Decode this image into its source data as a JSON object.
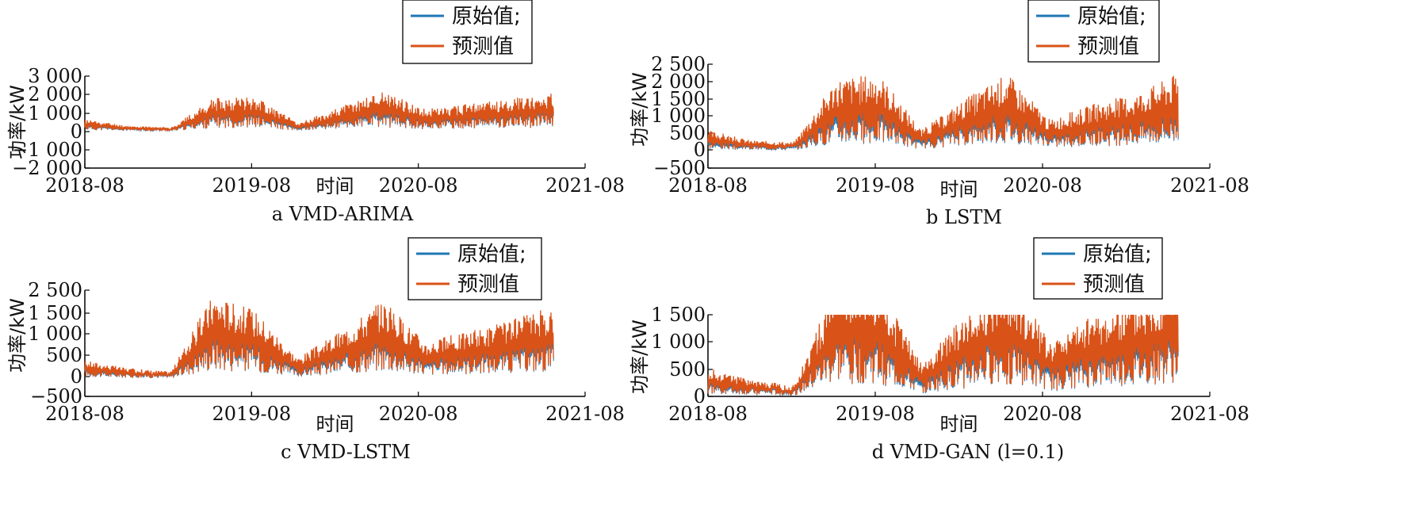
{
  "colors": {
    "original": "#1f77b4",
    "predicted": "#d95319",
    "axis": "#000000"
  },
  "chart_data": [
    {
      "type": "line",
      "caption": "a VMD-ARIMA",
      "xlabel": "时间",
      "ylabel": "功率/kW",
      "xticks": [
        "2018-08",
        "2019-08",
        "2020-08",
        "2021-08"
      ],
      "yticks": [
        "3 000",
        "2 000",
        "1 000",
        "0",
        "−1 000",
        "−2 000"
      ],
      "ylim": [
        -2000,
        3000
      ],
      "legend": [
        "原始值;",
        "预测值"
      ],
      "legend_position": "top-right",
      "series": [
        {
          "name": "原始值;",
          "x": [
            "2018-08",
            "2018-11",
            "2019-02",
            "2019-05",
            "2019-08",
            "2019-11",
            "2020-02",
            "2020-05",
            "2020-08",
            "2020-11",
            "2021-02",
            "2021-05"
          ],
          "values": [
            400,
            150,
            50,
            1100,
            1200,
            200,
            800,
            1300,
            700,
            900,
            1100,
            1300
          ]
        },
        {
          "name": "预测值",
          "x": [
            "2018-08",
            "2018-11",
            "2019-02",
            "2019-05",
            "2019-08",
            "2019-11",
            "2020-02",
            "2020-05",
            "2020-08",
            "2020-11",
            "2021-02",
            "2021-05"
          ],
          "values": [
            450,
            200,
            100,
            1200,
            1300,
            300,
            900,
            1500,
            800,
            1000,
            1200,
            1400
          ]
        }
      ]
    },
    {
      "type": "line",
      "caption": "b LSTM",
      "xlabel": "时间",
      "ylabel": "功率/kW",
      "xticks": [
        "2018-08",
        "2019-08",
        "2020-08",
        "2021-08"
      ],
      "yticks": [
        "2 500",
        "2 000",
        "1 500",
        "1 000",
        "500",
        "0",
        "−500"
      ],
      "ylim": [
        -500,
        2500
      ],
      "legend": [
        "原始值;",
        "预测值"
      ],
      "legend_position": "top-right",
      "series": [
        {
          "name": "原始值;",
          "x": [
            "2018-08",
            "2018-11",
            "2019-02",
            "2019-05",
            "2019-08",
            "2019-11",
            "2020-02",
            "2020-05",
            "2020-08",
            "2020-11",
            "2021-02",
            "2021-05"
          ],
          "values": [
            300,
            100,
            50,
            1200,
            1300,
            300,
            900,
            1300,
            500,
            800,
            1000,
            1300
          ]
        },
        {
          "name": "预测值",
          "x": [
            "2018-08",
            "2018-11",
            "2019-02",
            "2019-05",
            "2019-08",
            "2019-11",
            "2020-02",
            "2020-05",
            "2020-08",
            "2020-11",
            "2021-02",
            "2021-05"
          ],
          "values": [
            400,
            200,
            150,
            1400,
            1500,
            400,
            1000,
            1500,
            600,
            900,
            1100,
            1500
          ]
        }
      ]
    },
    {
      "type": "line",
      "caption": "c VMD-LSTM",
      "xlabel": "时间",
      "ylabel": "功率/kW",
      "xticks": [
        "2018-08",
        "2019-08",
        "2020-08",
        "2021-08"
      ],
      "yticks": [
        "2 500",
        "1 500",
        "1 000",
        "500",
        "0",
        "−500"
      ],
      "ylim": [
        -500,
        2500
      ],
      "legend": [
        "原始值;",
        "预测值"
      ],
      "legend_position": "top-right",
      "series": [
        {
          "name": "原始值;",
          "x": [
            "2018-08",
            "2018-11",
            "2019-02",
            "2019-05",
            "2019-08",
            "2019-11",
            "2020-02",
            "2020-05",
            "2020-08",
            "2020-11",
            "2021-02",
            "2021-05"
          ],
          "values": [
            300,
            150,
            50,
            1500,
            1200,
            300,
            800,
            1400,
            600,
            800,
            1000,
            1300
          ]
        },
        {
          "name": "预测值",
          "x": [
            "2018-08",
            "2018-11",
            "2019-02",
            "2019-05",
            "2019-08",
            "2019-11",
            "2020-02",
            "2020-05",
            "2020-08",
            "2020-11",
            "2021-02",
            "2021-05"
          ],
          "values": [
            350,
            200,
            100,
            1600,
            1300,
            400,
            900,
            1500,
            700,
            900,
            1100,
            1400
          ]
        }
      ]
    },
    {
      "type": "line",
      "caption": "d VMD-GAN (l=0.1)",
      "xlabel": "时间",
      "ylabel": "功率/kW",
      "xticks": [
        "2018-08",
        "2019-08",
        "2020-08",
        "2021-08"
      ],
      "yticks": [
        "1 500",
        "1 000",
        "500",
        "0"
      ],
      "ylim": [
        0,
        1500
      ],
      "legend": [
        "原始值;",
        "预测值"
      ],
      "legend_position": "top-right",
      "series": [
        {
          "name": "原始值;",
          "x": [
            "2018-08",
            "2018-11",
            "2019-02",
            "2019-05",
            "2019-08",
            "2019-11",
            "2020-02",
            "2020-05",
            "2020-08",
            "2020-11",
            "2021-02",
            "2021-05"
          ],
          "values": [
            300,
            150,
            50,
            1450,
            1300,
            300,
            900,
            1450,
            600,
            900,
            1100,
            1400
          ]
        },
        {
          "name": "预测值",
          "x": [
            "2018-08",
            "2018-11",
            "2019-02",
            "2019-05",
            "2019-08",
            "2019-11",
            "2020-02",
            "2020-05",
            "2020-08",
            "2020-11",
            "2021-02",
            "2021-05"
          ],
          "values": [
            350,
            200,
            100,
            1470,
            1400,
            400,
            1000,
            1470,
            700,
            1000,
            1200,
            1450
          ]
        }
      ]
    }
  ]
}
